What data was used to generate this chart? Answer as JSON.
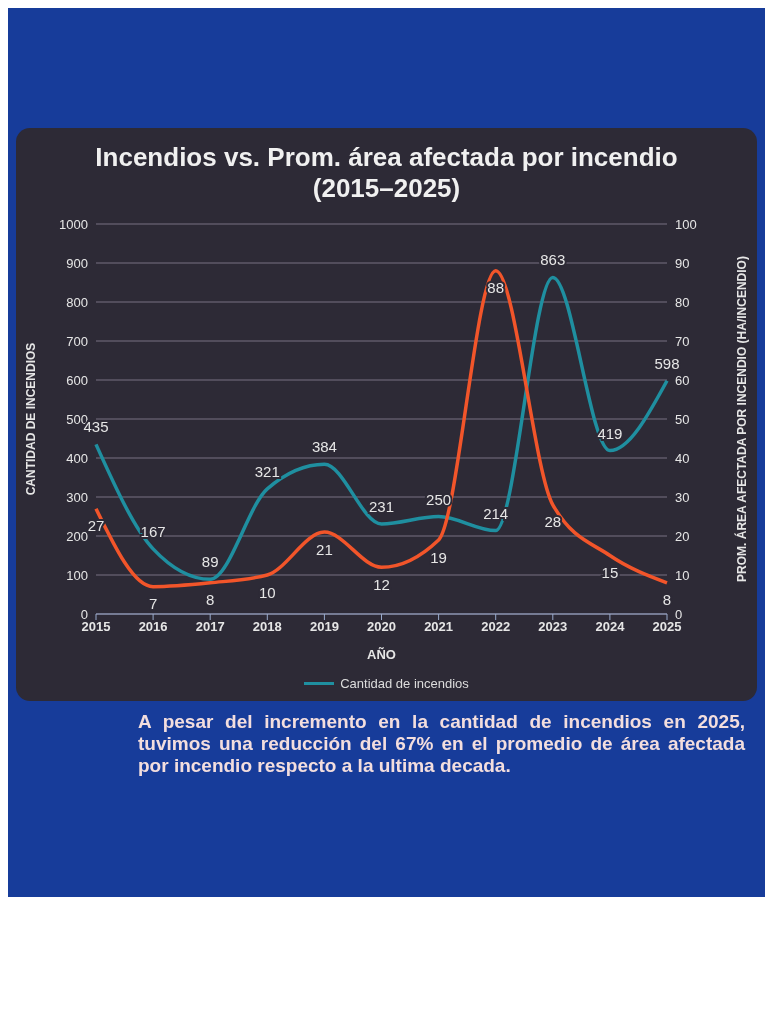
{
  "chart_data": {
    "type": "line",
    "title": "Incendios vs. Prom. área afectada por incendio (2015–2025)",
    "xlabel": "AÑO",
    "ylabel": "CANTIDAD DE INCENDIOS",
    "y2label": "PROM. ÁREA AFECTADA POR INCENDIO (HA/INCENDIO)",
    "categories": [
      "2015",
      "2016",
      "2017",
      "2018",
      "2019",
      "2020",
      "2021",
      "2022",
      "2023",
      "2024",
      "2025"
    ],
    "series": [
      {
        "name": "Cantidad de incendios",
        "color": "#1f8fa0",
        "values": [
          435,
          167,
          89,
          321,
          384,
          231,
          250,
          214,
          863,
          419,
          598
        ]
      },
      {
        "color": "#f2552a",
        "axis": "y2",
        "values": [
          27,
          7,
          8,
          10,
          21,
          12,
          19,
          88,
          28,
          15,
          8
        ]
      }
    ],
    "ylim": [
      0,
      1000
    ],
    "yticks": [
      0,
      100,
      200,
      300,
      400,
      500,
      600,
      700,
      800,
      900,
      1000
    ],
    "y2lim": [
      0,
      100
    ],
    "y2ticks": [
      0,
      10,
      20,
      30,
      40,
      50,
      60,
      70,
      80,
      90,
      100
    ],
    "grid": "y",
    "legend": "bottom",
    "data_labels": true,
    "annotations": [
      "A pesar del incremento en la cantidad de incendios en 2025, tuvimos una reducción del 67% en el promedio de área afectada por incendio respecto a la ultima decada."
    ]
  }
}
